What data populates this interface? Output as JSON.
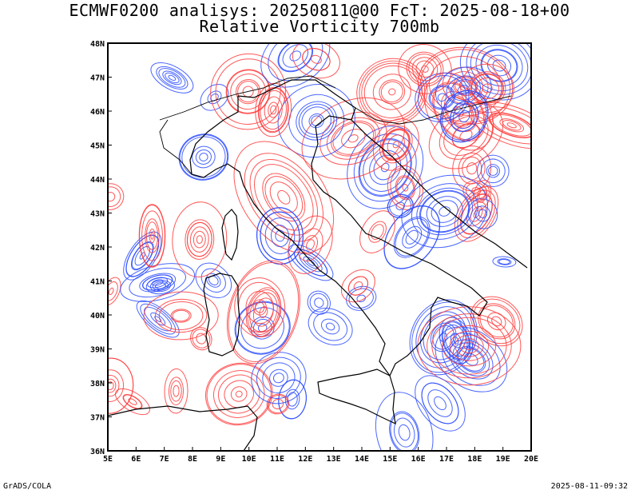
{
  "header": {
    "title": "ECMWF0200 analisys: 20250811@00 FcT: 2025-08-18+00",
    "subtitle": "Relative Vorticity 700mb"
  },
  "footer": {
    "left": "GrADS/COLA",
    "right": "2025-08-11-09:32"
  },
  "chart_data": {
    "type": "contour map",
    "variable": "Relative Vorticity 700mb",
    "lon_range": [
      5,
      20
    ],
    "lat_range": [
      36,
      48
    ],
    "lon_ticks": [
      "5E",
      "6E",
      "7E",
      "8E",
      "9E",
      "10E",
      "11E",
      "12E",
      "13E",
      "14E",
      "15E",
      "16E",
      "17E",
      "18E",
      "19E",
      "20E"
    ],
    "lat_ticks": [
      "36N",
      "37N",
      "38N",
      "39N",
      "40N",
      "41N",
      "42N",
      "43N",
      "44N",
      "45N",
      "46N",
      "47N",
      "48N"
    ],
    "positive_color": "#ff3b3b",
    "negative_color": "#2a4bff",
    "coast_color": "#000000"
  }
}
